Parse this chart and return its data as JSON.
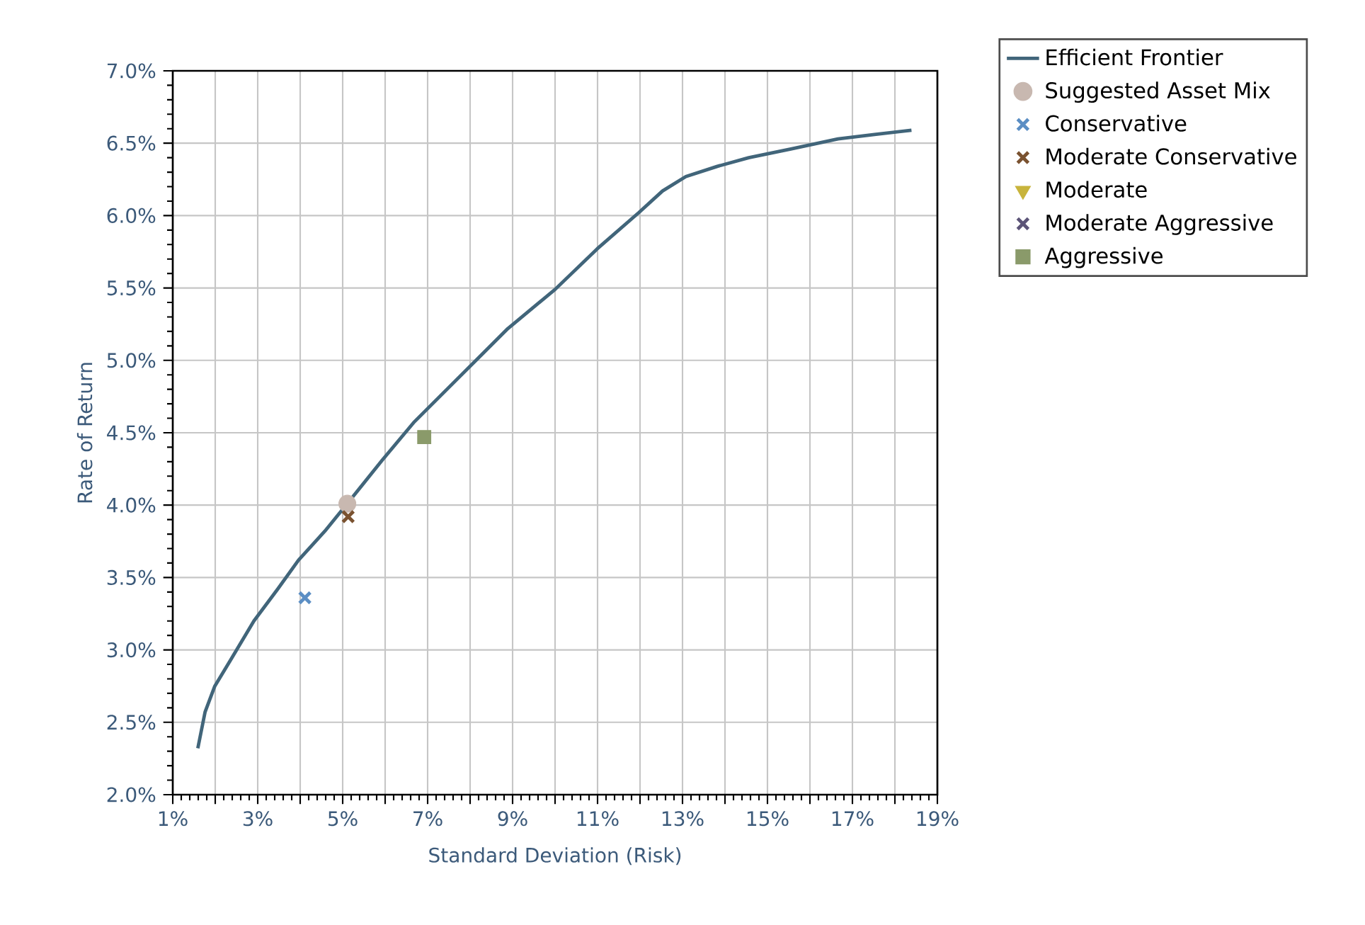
{
  "chart_data": {
    "type": "scatter",
    "xlabel": "Standard Deviation (Risk)",
    "ylabel": "Rate of Return",
    "grid": true,
    "legend": "top right",
    "xlim": [
      1,
      19
    ],
    "xticks": [
      {
        "value": 1,
        "label": "1%"
      },
      {
        "value": 2,
        "label": null
      },
      {
        "value": 3,
        "label": "3%"
      },
      {
        "value": 4,
        "label": null
      },
      {
        "value": 5,
        "label": "5%"
      },
      {
        "value": 6,
        "label": null
      },
      {
        "value": 7,
        "label": "7%"
      },
      {
        "value": 8,
        "label": null
      },
      {
        "value": 9,
        "label": "9%"
      },
      {
        "value": 10,
        "label": null
      },
      {
        "value": 11,
        "label": "11%"
      },
      {
        "value": 12,
        "label": null
      },
      {
        "value": 13,
        "label": "13%"
      },
      {
        "value": 14,
        "label": null
      },
      {
        "value": 15,
        "label": "15%"
      },
      {
        "value": 16,
        "label": null
      },
      {
        "value": 17,
        "label": "17%"
      },
      {
        "value": 18,
        "label": null
      },
      {
        "value": 19,
        "label": "19%"
      }
    ],
    "ylim": [
      2,
      7
    ],
    "yticks": [
      {
        "value": 2,
        "label": "2.0%"
      },
      {
        "value": 2.5,
        "label": "2.5%"
      },
      {
        "value": 3,
        "label": "3.0%"
      },
      {
        "value": 3.5,
        "label": "3.5%"
      },
      {
        "value": 4,
        "label": "4.0%"
      },
      {
        "value": 4.5,
        "label": "4.5%"
      },
      {
        "value": 5,
        "label": "5.0%"
      },
      {
        "value": 5.5,
        "label": "5.5%"
      },
      {
        "value": 6,
        "label": "6.0%"
      },
      {
        "value": 6.5,
        "label": "6.5%"
      },
      {
        "value": 7,
        "label": "7.0%"
      }
    ],
    "series": [
      {
        "name": "Efficient Frontier",
        "type": "line",
        "marker": "none",
        "color": "#41657a",
        "x": [
          1.59,
          1.76,
          1.99,
          2.36,
          2.91,
          3.47,
          3.96,
          4.58,
          5.19,
          5.93,
          6.67,
          7.66,
          8.89,
          10.0,
          10.99,
          11.97,
          12.53,
          13.08,
          13.82,
          14.56,
          15.55,
          16.66,
          17.52,
          18.39
        ],
        "values": [
          2.32,
          2.57,
          2.75,
          2.93,
          3.2,
          3.42,
          3.62,
          3.82,
          4.04,
          4.31,
          4.57,
          4.86,
          5.22,
          5.49,
          5.77,
          6.02,
          6.17,
          6.27,
          6.34,
          6.4,
          6.46,
          6.53,
          6.56,
          6.59
        ]
      },
      {
        "name": "Suggested Asset Mix",
        "marker": "circle",
        "color": "#c8b8b0",
        "x": [
          5.11
        ],
        "values": [
          4.01
        ]
      },
      {
        "name": "Conservative",
        "marker": "cross",
        "color": "#5b8ec4",
        "x": [
          4.11
        ],
        "values": [
          3.36
        ]
      },
      {
        "name": "Moderate Conservative",
        "marker": "cross",
        "color": "#7a5230",
        "x": [
          5.13
        ],
        "values": [
          3.92
        ]
      },
      {
        "name": "Moderate",
        "marker": "triangle",
        "color": "#c8b43c",
        "x": [
          null
        ],
        "values": [
          null
        ]
      },
      {
        "name": "Moderate Aggressive",
        "marker": "cross",
        "color": "#5c5478",
        "x": [
          null
        ],
        "values": [
          null
        ]
      },
      {
        "name": "Aggressive",
        "marker": "square",
        "color": "#8a9a6a",
        "x": [
          6.92
        ],
        "values": [
          4.47
        ]
      }
    ]
  }
}
